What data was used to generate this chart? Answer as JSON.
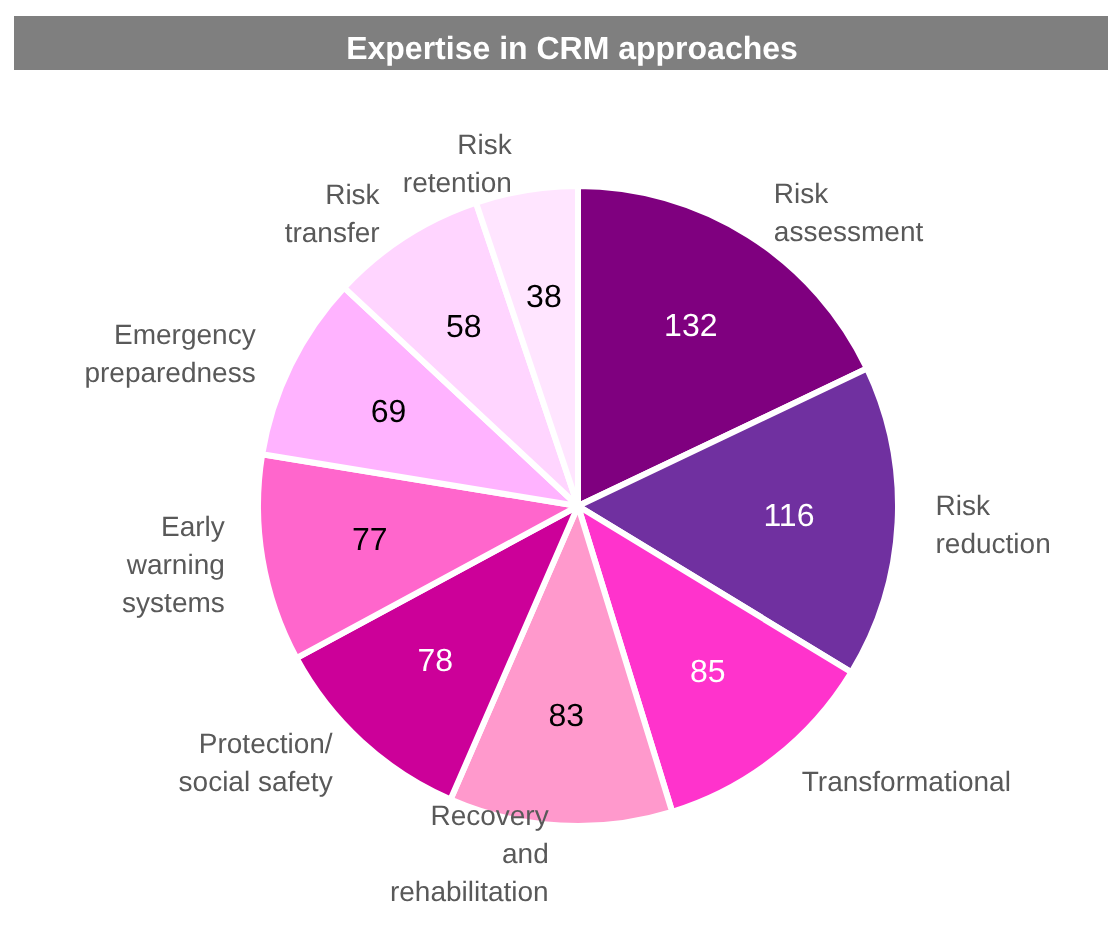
{
  "chart_data": {
    "type": "pie",
    "title": "Expertise in CRM approaches",
    "categories": [
      "Risk assessment",
      "Risk reduction",
      "Transformational",
      "Recovery and rehabilitation",
      "Protection/ social safety",
      "Early warning systems",
      "Emergency preparedness",
      "Risk transfer",
      "Risk retention"
    ],
    "values": [
      132,
      116,
      85,
      83,
      78,
      77,
      69,
      58,
      38
    ],
    "colors": [
      "#7f007f",
      "#7030a0",
      "#ff33cc",
      "#ff99cc",
      "#cc0099",
      "#ff66cc",
      "#ffb3ff",
      "#ffd5ff",
      "#ffe5ff"
    ],
    "data_labels": true,
    "legend": false
  }
}
